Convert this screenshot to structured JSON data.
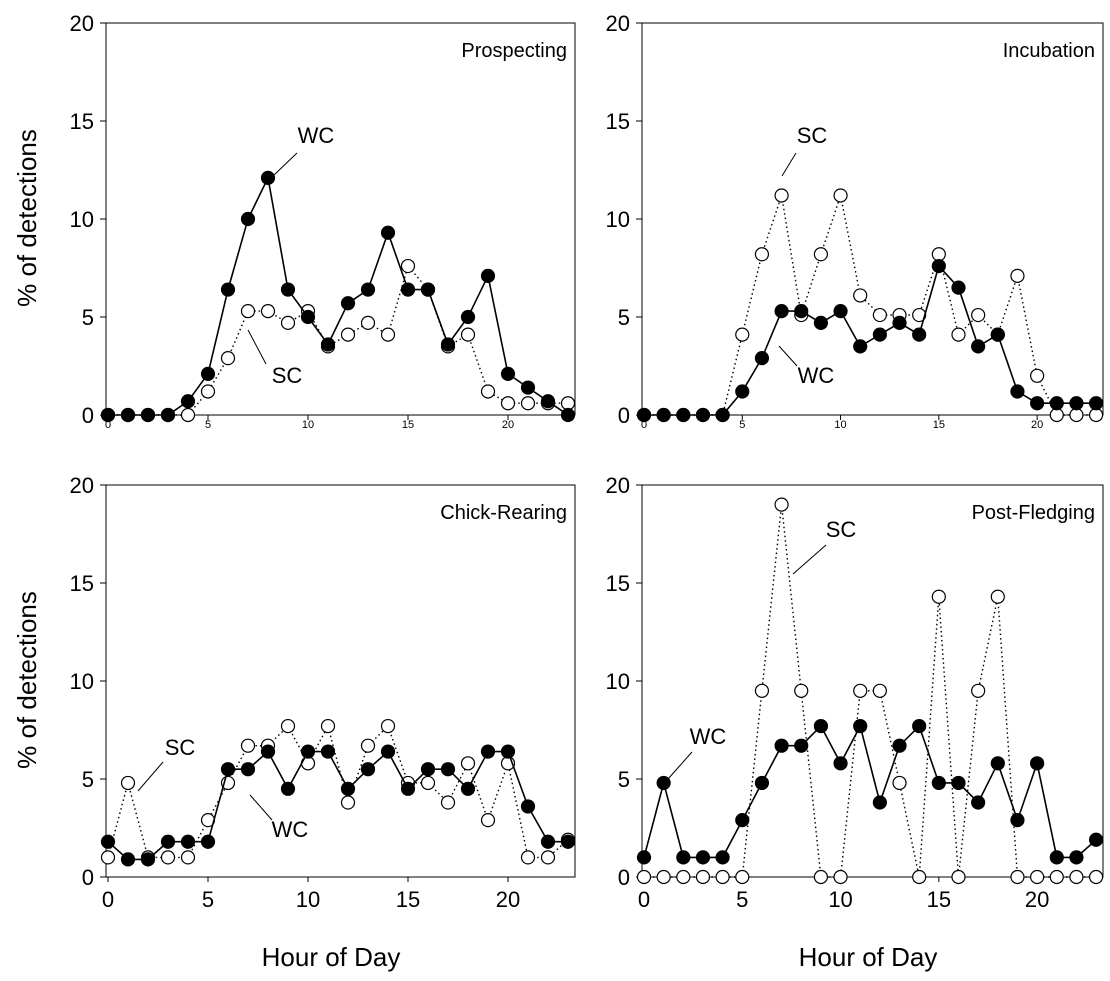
{
  "figure": {
    "ylabel": "% of detections",
    "xlabel": "Hour of Day"
  },
  "chart_data": [
    {
      "type": "line",
      "title": "Prospecting",
      "xlabel": "",
      "ylabel": "% of detections",
      "xlim": [
        0,
        23
      ],
      "ylim": [
        0,
        20
      ],
      "yticks": [
        "0",
        "5",
        "10",
        "15",
        "20"
      ],
      "xticks": [
        "0",
        "5",
        "10",
        "15",
        "20"
      ],
      "grid": false,
      "x": [
        0,
        1,
        2,
        3,
        4,
        5,
        6,
        7,
        8,
        9,
        10,
        11,
        12,
        13,
        14,
        15,
        16,
        17,
        18,
        19,
        20,
        21,
        22,
        23
      ],
      "series": [
        {
          "name": "WC",
          "marker": "filled",
          "line": "solid",
          "values": [
            0,
            0,
            0,
            0,
            0.7,
            2.1,
            6.4,
            10.0,
            12.1,
            6.4,
            5.0,
            3.6,
            5.7,
            6.4,
            9.3,
            6.4,
            6.4,
            3.6,
            5.0,
            7.1,
            2.1,
            1.4,
            0.7,
            0
          ]
        },
        {
          "name": "SC",
          "marker": "open",
          "line": "dotted",
          "values": [
            0,
            0,
            0,
            0,
            0,
            1.2,
            2.9,
            5.3,
            5.3,
            4.7,
            5.3,
            3.5,
            4.1,
            4.7,
            4.1,
            7.6,
            6.4,
            3.5,
            4.1,
            1.2,
            0.6,
            0.6,
            0.6,
            0.6
          ]
        }
      ]
    },
    {
      "type": "line",
      "title": "Incubation",
      "xlabel": "",
      "ylabel": "",
      "xlim": [
        0,
        23
      ],
      "ylim": [
        0,
        20
      ],
      "yticks": [
        "0",
        "5",
        "10",
        "15",
        "20"
      ],
      "xticks": [
        "0",
        "5",
        "10",
        "15",
        "20"
      ],
      "grid": false,
      "x": [
        0,
        1,
        2,
        3,
        4,
        5,
        6,
        7,
        8,
        9,
        10,
        11,
        12,
        13,
        14,
        15,
        16,
        17,
        18,
        19,
        20,
        21,
        22,
        23
      ],
      "series": [
        {
          "name": "WC",
          "marker": "filled",
          "line": "solid",
          "values": [
            0,
            0,
            0,
            0,
            0,
            1.2,
            2.9,
            5.3,
            5.3,
            4.7,
            5.3,
            3.5,
            4.1,
            4.7,
            4.1,
            7.6,
            6.5,
            3.5,
            4.1,
            1.2,
            0.6,
            0.6,
            0.6,
            0.6
          ]
        },
        {
          "name": "SC",
          "marker": "open",
          "line": "dotted",
          "values": [
            0,
            0,
            0,
            0,
            0,
            4.1,
            8.2,
            11.2,
            5.1,
            8.2,
            11.2,
            6.1,
            5.1,
            5.1,
            5.1,
            8.2,
            4.1,
            5.1,
            4.1,
            7.1,
            2.0,
            0,
            0,
            0
          ]
        }
      ]
    },
    {
      "type": "line",
      "title": "Chick-Rearing",
      "xlabel": "Hour of Day",
      "ylabel": "% of detections",
      "xlim": [
        0,
        23
      ],
      "ylim": [
        0,
        20
      ],
      "yticks": [
        "0",
        "5",
        "10",
        "15",
        "20"
      ],
      "xticks": [
        "0",
        "5",
        "10",
        "15",
        "20"
      ],
      "grid": false,
      "x": [
        0,
        1,
        2,
        3,
        4,
        5,
        6,
        7,
        8,
        9,
        10,
        11,
        12,
        13,
        14,
        15,
        16,
        17,
        18,
        19,
        20,
        21,
        22,
        23
      ],
      "series": [
        {
          "name": "WC",
          "marker": "filled",
          "line": "solid",
          "values": [
            1.8,
            0.9,
            0.9,
            1.8,
            1.8,
            1.8,
            5.5,
            5.5,
            6.4,
            4.5,
            6.4,
            6.4,
            4.5,
            5.5,
            6.4,
            4.5,
            5.5,
            5.5,
            4.5,
            6.4,
            6.4,
            3.6,
            1.8,
            1.8
          ]
        },
        {
          "name": "SC",
          "marker": "open",
          "line": "dotted",
          "values": [
            1.0,
            4.8,
            1.0,
            1.0,
            1.0,
            2.9,
            4.8,
            6.7,
            6.7,
            7.7,
            5.8,
            7.7,
            3.8,
            6.7,
            7.7,
            4.8,
            4.8,
            3.8,
            5.8,
            2.9,
            5.8,
            1.0,
            1.0,
            1.9
          ]
        }
      ]
    },
    {
      "type": "line",
      "title": "Post-Fledging",
      "xlabel": "Hour of Day",
      "ylabel": "",
      "xlim": [
        0,
        23
      ],
      "ylim": [
        0,
        20
      ],
      "yticks": [
        "0",
        "5",
        "10",
        "15",
        "20"
      ],
      "xticks": [
        "0",
        "5",
        "10",
        "15",
        "20"
      ],
      "grid": false,
      "x": [
        0,
        1,
        2,
        3,
        4,
        5,
        6,
        7,
        8,
        9,
        10,
        11,
        12,
        13,
        14,
        15,
        16,
        17,
        18,
        19,
        20,
        21,
        22,
        23
      ],
      "series": [
        {
          "name": "WC",
          "marker": "filled",
          "line": "solid",
          "values": [
            1.0,
            4.8,
            1.0,
            1.0,
            1.0,
            2.9,
            4.8,
            6.7,
            6.7,
            7.7,
            5.8,
            7.7,
            3.8,
            6.7,
            7.7,
            4.8,
            4.8,
            3.8,
            5.8,
            2.9,
            5.8,
            1.0,
            1.0,
            1.9
          ]
        },
        {
          "name": "SC",
          "marker": "open",
          "line": "dotted",
          "values": [
            0,
            0,
            0,
            0,
            0,
            0,
            9.5,
            19.0,
            9.5,
            0,
            0,
            9.5,
            9.5,
            4.8,
            0,
            14.3,
            0,
            9.5,
            14.3,
            0,
            0,
            0,
            0,
            0
          ]
        }
      ]
    }
  ]
}
